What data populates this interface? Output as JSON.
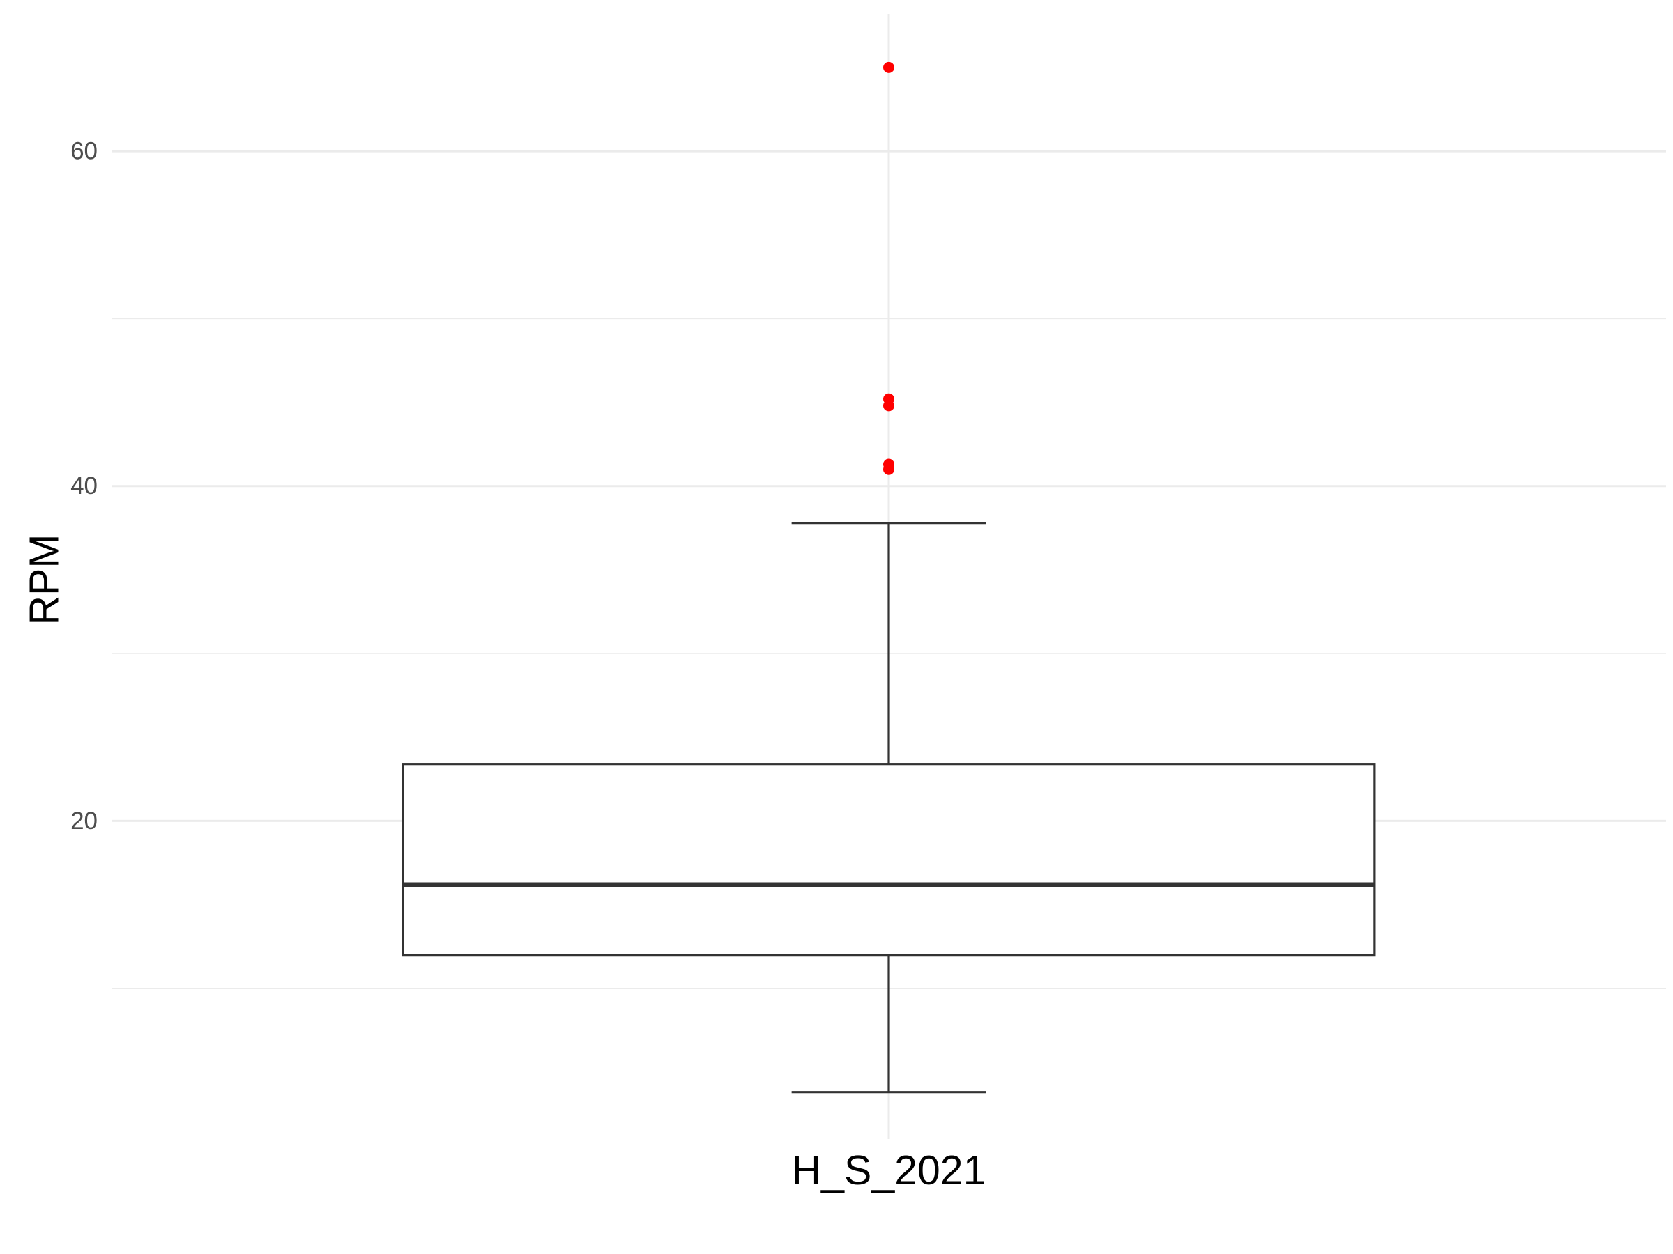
{
  "chart_data": {
    "type": "boxplot",
    "ylabel": "RPM",
    "xlabel": "",
    "categories": [
      "H_S_2021"
    ],
    "ylim": [
      1,
      68.2
    ],
    "y_ticks": [
      20,
      40,
      60
    ],
    "y_tick_labels": [
      "20",
      "40",
      "60"
    ],
    "y_minor_ticks": [
      10,
      30,
      50
    ],
    "grid": true,
    "legend": "none",
    "boxes": [
      {
        "category": "H_S_2021",
        "lower_whisker": 3.8,
        "q1": 12.0,
        "median": 16.2,
        "q3": 23.4,
        "upper_whisker": 37.8,
        "outliers": [
          65.0,
          45.2,
          44.8,
          41.3,
          41.0
        ]
      }
    ],
    "colors": {
      "outlier": "#ff0000",
      "box_stroke": "#333333",
      "grid": "#ebebeb",
      "tick_text": "#4d4d4d"
    }
  }
}
